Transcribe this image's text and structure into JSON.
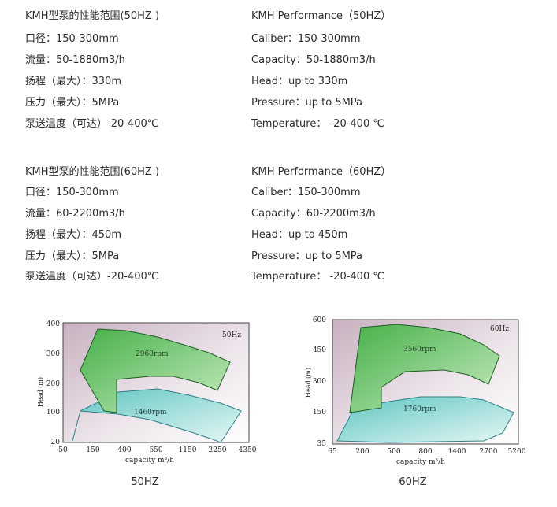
{
  "sections": [
    {
      "cn": [
        "KMH型泵的性能范围(50HZ )",
        "口径：150-300mm",
        "流量：50-1880m3/h",
        "扬程（最大）：330m",
        "压力（最大）：5MPa",
        "泵送温度（可达）-20-400℃"
      ],
      "en": [
        "KMH Performance（50HZ）",
        "Caliber：150-300mm",
        "Capacity：50-1880m3/h",
        "Head：up to 330m",
        "Pressure：up to 5MPa",
        "Temperature：  -20-400 ℃"
      ]
    },
    {
      "cn": [
        "KMH型泵的性能范围(60HZ )",
        "口径：150-300mm",
        "流量：60-2200m3/h",
        "扬程（最大）：450m",
        "压力（最大）：5MPa",
        "泵送温度（可达）-20-400℃"
      ],
      "en": [
        "KMH Performance（60HZ）",
        "Caliber：150-300mm",
        "Capacity：60-2200m3/h",
        "Head：up to 450m",
        "Pressure：up to 5MPa",
        "Temperature：  -20-400 ℃"
      ]
    }
  ],
  "chart_data": [
    {
      "type": "area",
      "caption": "50HZ",
      "corner_label": "50Hz",
      "xlabel": "capacity m³/h",
      "ylabel": "Head (m)",
      "x_ticks": [
        "50",
        "150",
        "400",
        "650",
        "1150",
        "2250",
        "4350"
      ],
      "y_ticks": [
        "20",
        "100",
        "200",
        "300",
        "400"
      ],
      "regions": [
        {
          "name": "2960rpm",
          "color": "#5cc05a"
        },
        {
          "name": "1460rpm",
          "color": "#7fd2d2"
        }
      ]
    },
    {
      "type": "area",
      "caption": "60HZ",
      "corner_label": "60Hz",
      "xlabel": "capacity m³/h",
      "ylabel": "Head (m)",
      "x_ticks": [
        "65",
        "200",
        "500",
        "800",
        "1400",
        "2700",
        "5200"
      ],
      "y_ticks": [
        "35",
        "150",
        "300",
        "450",
        "600"
      ],
      "regions": [
        {
          "name": "3560rpm",
          "color": "#5cc05a"
        },
        {
          "name": "1760rpm",
          "color": "#7fd2d2"
        }
      ]
    }
  ]
}
